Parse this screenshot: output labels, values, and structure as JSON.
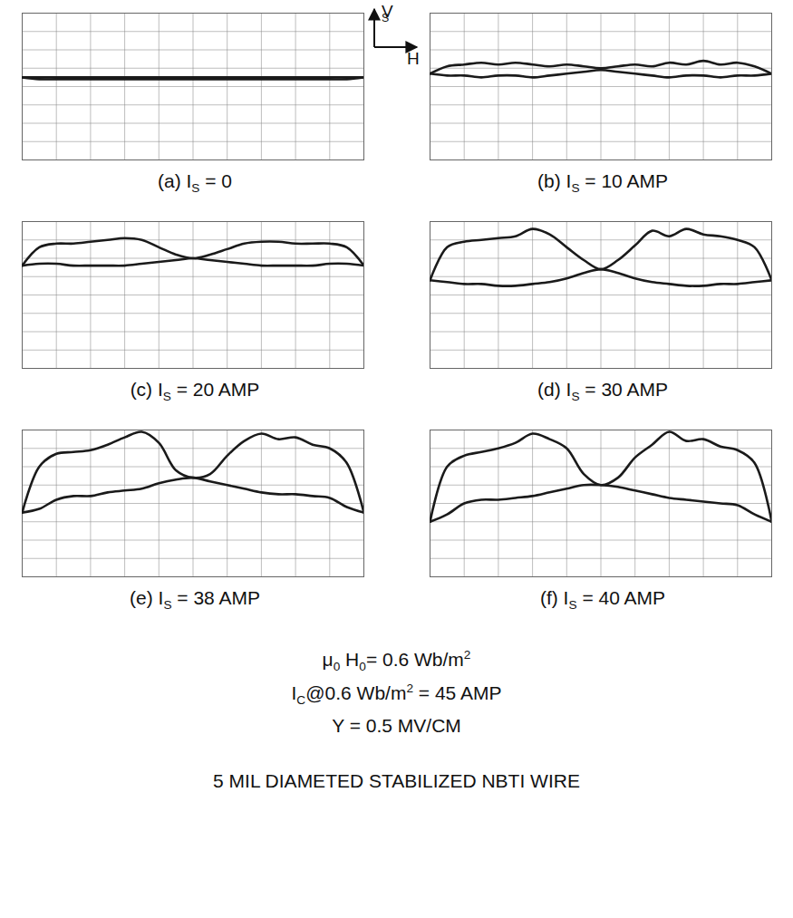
{
  "chart_data": [
    {
      "type": "line",
      "title": [
        {
          "text": "(a) I"
        },
        {
          "text": "S",
          "sub": true
        },
        {
          "text": " = 0"
        }
      ],
      "xlabel": "H",
      "ylabel": [
        {
          "text": "V"
        },
        {
          "text": "S",
          "sub": true
        }
      ],
      "xlim": [
        -5,
        5
      ],
      "ylim": [
        -4,
        4
      ],
      "xticks": [
        -5,
        -4,
        -3,
        -2,
        -1,
        0,
        1,
        2,
        3,
        4,
        5
      ],
      "yticks": [
        -4,
        -3,
        -2,
        -1,
        0,
        1,
        2,
        3,
        4
      ],
      "grid": true,
      "tick_labels": false,
      "color": "#1a1a1a",
      "x": [
        -5,
        -4.5,
        -4,
        -3.5,
        -3,
        -2.5,
        -2,
        -1.5,
        -1,
        -0.5,
        0,
        0.5,
        1,
        1.5,
        2,
        2.5,
        3,
        3.5,
        4,
        4.5,
        5
      ],
      "series": [
        {
          "values": [
            0.5,
            0.5,
            0.5,
            0.5,
            0.5,
            0.5,
            0.5,
            0.5,
            0.5,
            0.5,
            0.5,
            0.5,
            0.5,
            0.5,
            0.5,
            0.5,
            0.5,
            0.5,
            0.5,
            0.5,
            0.5
          ]
        },
        {
          "values": [
            0.5,
            0.4,
            0.4,
            0.4,
            0.4,
            0.4,
            0.4,
            0.4,
            0.4,
            0.4,
            0.4,
            0.4,
            0.4,
            0.4,
            0.4,
            0.4,
            0.4,
            0.4,
            0.4,
            0.4,
            0.5
          ]
        }
      ]
    },
    {
      "type": "line",
      "title": [
        {
          "text": "(b) I"
        },
        {
          "text": "S",
          "sub": true
        },
        {
          "text": " = 10 AMP"
        }
      ],
      "xlim": [
        -5,
        5
      ],
      "ylim": [
        -4,
        4
      ],
      "xticks": [
        -5,
        -4,
        -3,
        -2,
        -1,
        0,
        1,
        2,
        3,
        4,
        5
      ],
      "yticks": [
        -4,
        -3,
        -2,
        -1,
        0,
        1,
        2,
        3,
        4
      ],
      "grid": true,
      "tick_labels": false,
      "color": "#1a1a1a",
      "x": [
        -5,
        -4.5,
        -4,
        -3.5,
        -3,
        -2.5,
        -2,
        -1.5,
        -1,
        -0.5,
        0,
        0.5,
        1,
        1.5,
        2,
        2.5,
        3,
        3.5,
        4,
        4.5,
        5
      ],
      "series": [
        {
          "values": [
            0.7,
            1.1,
            1.2,
            1.3,
            1.2,
            1.3,
            1.2,
            1.1,
            1.2,
            1.1,
            1.0,
            1.1,
            1.2,
            1.1,
            1.3,
            1.2,
            1.4,
            1.2,
            1.3,
            1.1,
            0.7
          ]
        },
        {
          "values": [
            0.7,
            0.6,
            0.6,
            0.5,
            0.6,
            0.6,
            0.5,
            0.6,
            0.7,
            0.8,
            0.9,
            0.8,
            0.7,
            0.6,
            0.5,
            0.6,
            0.6,
            0.5,
            0.6,
            0.6,
            0.7
          ]
        }
      ]
    },
    {
      "type": "line",
      "title": [
        {
          "text": "(c) I"
        },
        {
          "text": "S",
          "sub": true
        },
        {
          "text": " = 20 AMP"
        }
      ],
      "xlim": [
        -5,
        5
      ],
      "ylim": [
        -4,
        4
      ],
      "xticks": [
        -5,
        -4,
        -3,
        -2,
        -1,
        0,
        1,
        2,
        3,
        4,
        5
      ],
      "yticks": [
        -4,
        -3,
        -2,
        -1,
        0,
        1,
        2,
        3,
        4
      ],
      "grid": true,
      "tick_labels": false,
      "color": "#1a1a1a",
      "x": [
        -5,
        -4.5,
        -4,
        -3.5,
        -3,
        -2.5,
        -2,
        -1.5,
        -1,
        -0.5,
        0,
        0.5,
        1,
        1.5,
        2,
        2.5,
        3,
        3.5,
        4,
        4.5,
        5
      ],
      "series": [
        {
          "values": [
            1.6,
            2.6,
            2.8,
            2.8,
            2.9,
            3.0,
            3.1,
            3.0,
            2.6,
            2.2,
            2.0,
            2.2,
            2.5,
            2.8,
            2.9,
            2.9,
            2.8,
            2.8,
            2.8,
            2.6,
            1.6
          ]
        },
        {
          "values": [
            1.6,
            1.7,
            1.7,
            1.6,
            1.6,
            1.6,
            1.6,
            1.7,
            1.8,
            1.9,
            2.0,
            1.9,
            1.8,
            1.7,
            1.6,
            1.6,
            1.6,
            1.6,
            1.7,
            1.7,
            1.6
          ]
        }
      ]
    },
    {
      "type": "line",
      "title": [
        {
          "text": "(d) I"
        },
        {
          "text": "S",
          "sub": true
        },
        {
          "text": " = 30 AMP"
        }
      ],
      "xlim": [
        -5,
        5
      ],
      "ylim": [
        -4,
        4
      ],
      "xticks": [
        -5,
        -4,
        -3,
        -2,
        -1,
        0,
        1,
        2,
        3,
        4,
        5
      ],
      "yticks": [
        -4,
        -3,
        -2,
        -1,
        0,
        1,
        2,
        3,
        4
      ],
      "grid": true,
      "tick_labels": false,
      "color": "#1a1a1a",
      "x": [
        -5,
        -4.5,
        -4,
        -3.5,
        -3,
        -2.5,
        -2,
        -1.5,
        -1,
        -0.5,
        0,
        0.5,
        1,
        1.5,
        2,
        2.5,
        3,
        3.5,
        4,
        4.5,
        5
      ],
      "series": [
        {
          "values": [
            0.8,
            2.6,
            2.9,
            3.0,
            3.1,
            3.2,
            3.6,
            3.3,
            2.6,
            1.9,
            1.4,
            1.9,
            2.7,
            3.5,
            3.2,
            3.6,
            3.3,
            3.2,
            3.0,
            2.6,
            0.8
          ]
        },
        {
          "values": [
            0.8,
            0.7,
            0.6,
            0.6,
            0.5,
            0.5,
            0.6,
            0.7,
            0.9,
            1.2,
            1.4,
            1.2,
            0.9,
            0.7,
            0.6,
            0.5,
            0.5,
            0.6,
            0.6,
            0.7,
            0.8
          ]
        }
      ]
    },
    {
      "type": "line",
      "title": [
        {
          "text": "(e) I"
        },
        {
          "text": "S",
          "sub": true
        },
        {
          "text": " = 38 AMP"
        }
      ],
      "xlim": [
        -5,
        5
      ],
      "ylim": [
        -4,
        4
      ],
      "xticks": [
        -5,
        -4,
        -3,
        -2,
        -1,
        0,
        1,
        2,
        3,
        4,
        5
      ],
      "yticks": [
        -4,
        -3,
        -2,
        -1,
        0,
        1,
        2,
        3,
        4
      ],
      "grid": true,
      "tick_labels": false,
      "color": "#1a1a1a",
      "x": [
        -5,
        -4.5,
        -4,
        -3.5,
        -3,
        -2.5,
        -2,
        -1.5,
        -1,
        -0.5,
        0,
        0.5,
        1,
        1.5,
        2,
        2.5,
        3,
        3.5,
        4,
        4.5,
        5
      ],
      "series": [
        {
          "values": [
            -0.5,
            2.0,
            2.7,
            2.8,
            2.9,
            3.2,
            3.6,
            3.9,
            3.3,
            1.8,
            1.4,
            1.6,
            2.6,
            3.4,
            3.8,
            3.5,
            3.6,
            3.2,
            3.0,
            2.2,
            -0.5
          ]
        },
        {
          "values": [
            -0.5,
            -0.3,
            0.2,
            0.4,
            0.4,
            0.6,
            0.7,
            0.8,
            1.1,
            1.3,
            1.4,
            1.2,
            1.0,
            0.8,
            0.6,
            0.5,
            0.5,
            0.4,
            0.3,
            -0.2,
            -0.5
          ]
        }
      ]
    },
    {
      "type": "line",
      "title": [
        {
          "text": "(f) I"
        },
        {
          "text": "S",
          "sub": true
        },
        {
          "text": " = 40 AMP"
        }
      ],
      "xlim": [
        -5,
        5
      ],
      "ylim": [
        -4,
        4
      ],
      "xticks": [
        -5,
        -4,
        -3,
        -2,
        -1,
        0,
        1,
        2,
        3,
        4,
        5
      ],
      "yticks": [
        -4,
        -3,
        -2,
        -1,
        0,
        1,
        2,
        3,
        4
      ],
      "grid": true,
      "tick_labels": false,
      "color": "#1a1a1a",
      "x": [
        -5,
        -4.5,
        -4,
        -3.5,
        -3,
        -2.5,
        -2,
        -1.5,
        -1,
        -0.5,
        0,
        0.5,
        1,
        1.5,
        2,
        2.5,
        3,
        3.5,
        4,
        4.5,
        5
      ],
      "series": [
        {
          "values": [
            -1.0,
            2.0,
            2.6,
            2.8,
            3.0,
            3.3,
            3.8,
            3.5,
            3.0,
            1.6,
            1.0,
            1.4,
            2.5,
            3.2,
            3.9,
            3.4,
            3.5,
            3.1,
            2.9,
            2.2,
            -1.0
          ]
        },
        {
          "values": [
            -1.0,
            -0.6,
            0.0,
            0.2,
            0.2,
            0.3,
            0.4,
            0.6,
            0.8,
            1.0,
            1.0,
            0.9,
            0.7,
            0.5,
            0.3,
            0.2,
            0.1,
            0.0,
            -0.1,
            -0.6,
            -1.0
          ]
        }
      ]
    }
  ],
  "footer": [
    [
      {
        "text": "μ"
      },
      {
        "text": "0",
        "sub": true
      },
      {
        "text": " H"
      },
      {
        "text": "0",
        "sub": true
      },
      {
        "text": "= 0.6 Wb/m"
      },
      {
        "text": "2",
        "sup": true
      }
    ],
    [
      {
        "text": "I"
      },
      {
        "text": "C",
        "sub": true
      },
      {
        "text": "@0.6 Wb/m"
      },
      {
        "text": "2",
        "sup": true
      },
      {
        "text": " = 45 AMP"
      }
    ],
    [
      {
        "text": "Y = 0.5 MV/CM"
      }
    ],
    [
      {
        "text": "5 MIL DIAMETED STABILIZED NBTI WIRE"
      }
    ]
  ]
}
